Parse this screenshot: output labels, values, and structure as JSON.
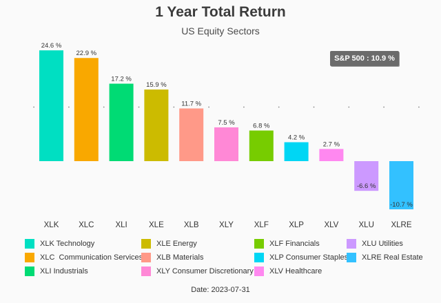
{
  "chart_data": {
    "type": "bar",
    "title": "1 Year Total Return",
    "subtitle": "US Equity Sectors",
    "categories": [
      "XLK",
      "XLC",
      "XLI",
      "XLE",
      "XLB",
      "XLY",
      "XLF",
      "XLP",
      "XLV",
      "XLU",
      "XLRE"
    ],
    "values": [
      24.6,
      22.9,
      17.2,
      15.9,
      11.7,
      7.5,
      6.8,
      4.2,
      2.7,
      -6.6,
      -10.7
    ],
    "value_labels": [
      "24.6 %",
      "22.9 %",
      "17.2 %",
      "15.9 %",
      "11.7 %",
      "7.5 %",
      "6.8 %",
      "4.2 %",
      "2.7 %",
      "-6.6 %",
      "-10.7 %"
    ],
    "colors": [
      "#00dfc2",
      "#f9a800",
      "#00db74",
      "#ccbb00",
      "#ff9988",
      "#ff88d6",
      "#77cc00",
      "#00d6f4",
      "#ff88f0",
      "#cc99ff",
      "#33c1ff"
    ],
    "ylim": [
      -11.5,
      26
    ],
    "grid": false,
    "legend_position": "bottom",
    "legend": [
      "XLK Technology",
      "XLE Energy",
      "XLF Financials",
      "XLU Utilities",
      "XLC  Communication Services",
      "XLB Materials",
      "XLP Consumer Staples",
      "XLRE Real Estate",
      "XLI Industrials",
      "XLY Consumer Discretionary",
      "XLV Healthcare"
    ],
    "legend_colors": [
      "#00dfc2",
      "#ccbb00",
      "#77cc00",
      "#cc99ff",
      "#f9a800",
      "#ff9988",
      "#00d6f4",
      "#33c1ff",
      "#00db74",
      "#ff88d6",
      "#ff88f0"
    ],
    "annotation": "S&P 500 : 10.9 %",
    "reference_dots_value": 12
  },
  "footer": {
    "date": "Date: 2023-07-31"
  }
}
